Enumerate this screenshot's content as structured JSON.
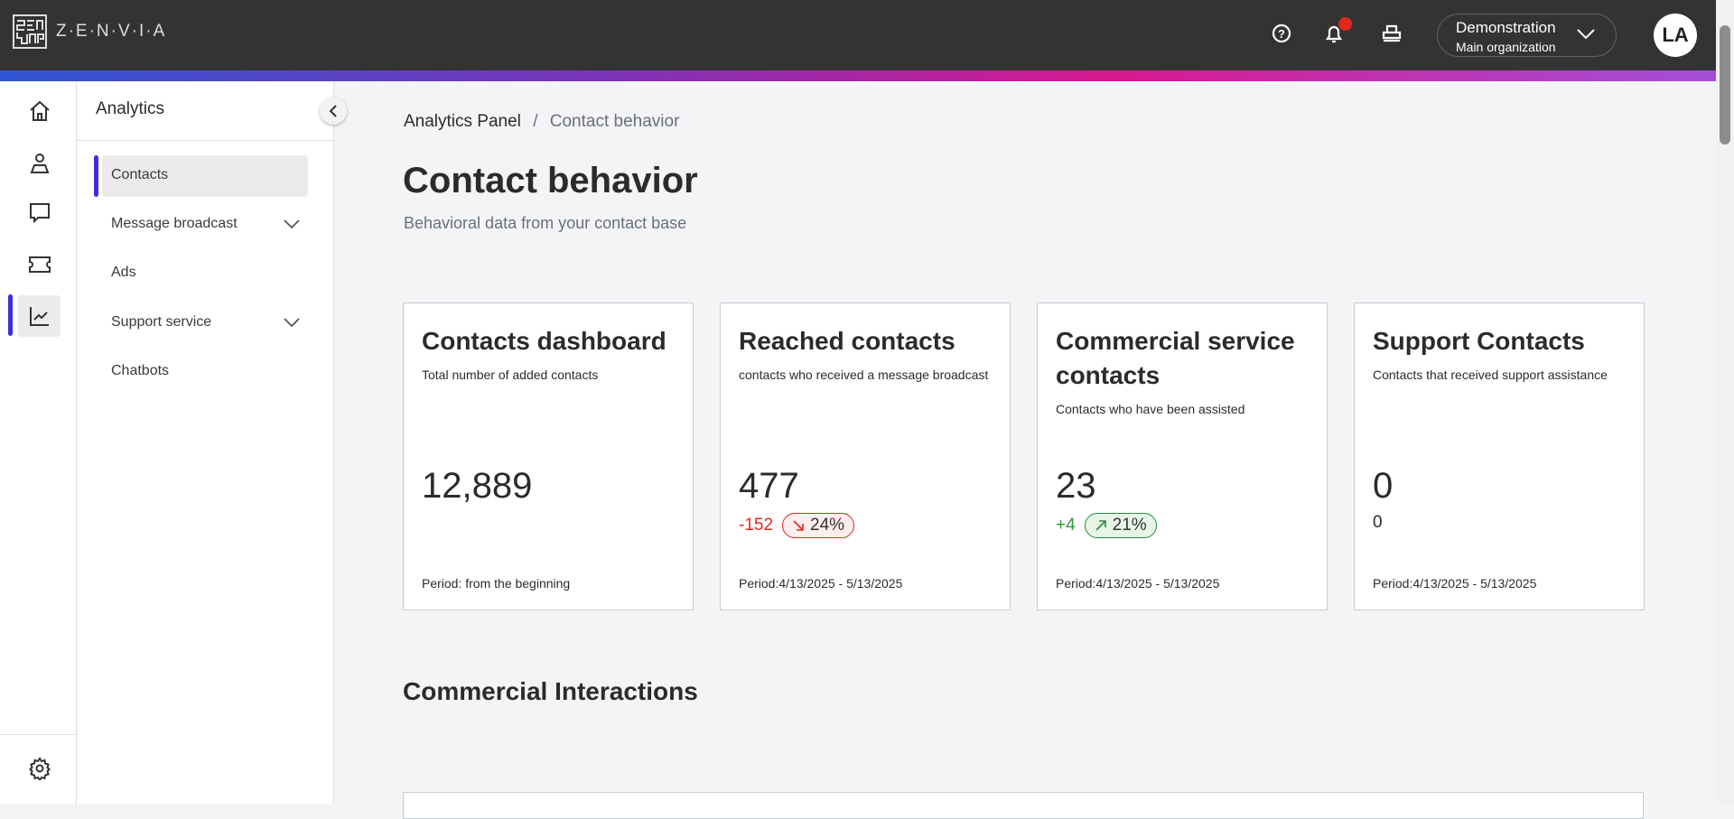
{
  "header": {
    "logo_text": "Z·E·N·V·I·A",
    "org_name": "Demonstration",
    "org_sub": "Main organization",
    "avatar": "LA",
    "icons": [
      "help-icon",
      "bell-icon",
      "printer-icon",
      "chevron-down-icon"
    ],
    "notification_color": "#e0281e"
  },
  "rail": {
    "items": [
      "home",
      "contacts",
      "chat",
      "tickets",
      "analytics"
    ],
    "active": "analytics",
    "accent": "#3d2ee0"
  },
  "submenu": {
    "title": "Analytics",
    "items": [
      {
        "label": "Contacts",
        "active": true
      },
      {
        "label": "Message broadcast",
        "expandable": true
      },
      {
        "label": "Ads"
      },
      {
        "label": "Support service",
        "expandable": true
      },
      {
        "label": "Chatbots"
      }
    ]
  },
  "breadcrumb": {
    "parent": "Analytics Panel",
    "sep": "/",
    "current": "Contact behavior"
  },
  "page": {
    "title": "Contact behavior",
    "subtitle": "Behavioral data from your contact base"
  },
  "cards": [
    {
      "title": "Contacts dashboard",
      "desc": "Total number of added contacts",
      "value": "12,889",
      "period": "Period: from the beginning"
    },
    {
      "title": "Reached contacts",
      "desc": "contacts who received a message broadcast",
      "value": "477",
      "delta": "-152",
      "pct": "24%",
      "trend": "down",
      "color": "#e0281e",
      "period": "Period:4/13/2025 - 5/13/2025"
    },
    {
      "title": "Commercial service contacts",
      "desc": "Contacts who have been assisted",
      "value": "23",
      "delta": "+4",
      "pct": "21%",
      "trend": "up",
      "color": "#2a9a3a",
      "period": "Period:4/13/2025 - 5/13/2025"
    },
    {
      "title": "Support Contacts",
      "desc": "Contacts that received support assistance",
      "value": "0",
      "sub": "0",
      "period": "Period:4/13/2025 - 5/13/2025"
    }
  ],
  "section": {
    "title": "Commercial Interactions"
  }
}
